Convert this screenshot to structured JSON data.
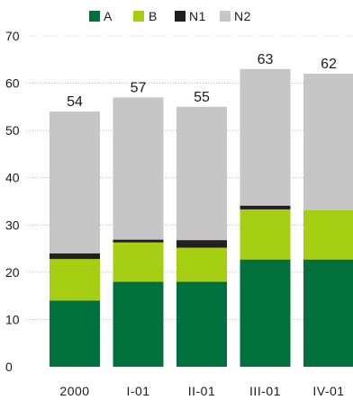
{
  "chart_data": {
    "type": "bar",
    "stacked": true,
    "categories": [
      "2000",
      "I-01",
      "II-01",
      "III-01",
      "IV-01"
    ],
    "series": [
      {
        "name": "A",
        "color": "#00703c",
        "values": [
          14,
          18,
          18,
          22.7,
          22.7
        ]
      },
      {
        "name": "B",
        "color": "#a6ce12",
        "values": [
          8.8,
          8.3,
          7.2,
          10.6,
          10.4
        ]
      },
      {
        "name": "N1",
        "color": "#231f20",
        "values": [
          1.2,
          0.6,
          1.6,
          0.8,
          0
        ]
      },
      {
        "name": "N2",
        "color": "#c6c6c6",
        "values": [
          30,
          30.1,
          28.2,
          28.9,
          28.9
        ]
      }
    ],
    "totals": [
      "54",
      "57",
      "55",
      "63",
      "62"
    ],
    "yticks": [
      "0",
      "10",
      "20",
      "30",
      "40",
      "50",
      "60",
      "70"
    ],
    "ylim": [
      0,
      70
    ],
    "grid": true,
    "legend_position": "top",
    "title": "",
    "xlabel": "",
    "ylabel": ""
  }
}
